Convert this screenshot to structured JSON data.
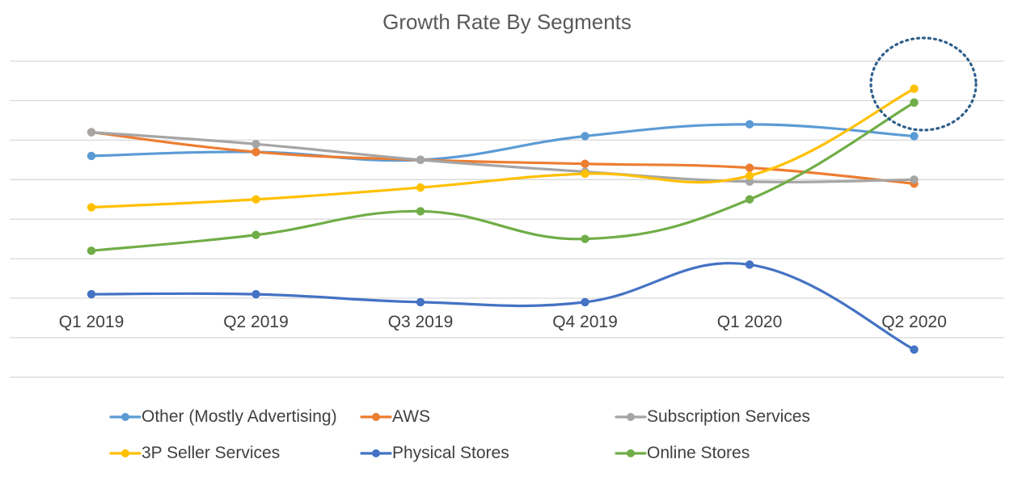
{
  "chart_data": {
    "type": "line",
    "title": "Growth Rate By Segments",
    "categories": [
      "Q1 2019",
      "Q2 2019",
      "Q3 2019",
      "Q4 2019",
      "Q1 2020",
      "Q2 2020"
    ],
    "ylim": [
      -20,
      60
    ],
    "y_gridline_step": 10,
    "y_tick_labels_visible": false,
    "grid": "horizontal",
    "smooth_lines": true,
    "legend_position": "bottom",
    "series": [
      {
        "name": "Other (Mostly Advertising)",
        "color": "#5B9BD5",
        "values": [
          36,
          37,
          35,
          41,
          44,
          41
        ]
      },
      {
        "name": "AWS",
        "color": "#ED7D31",
        "values": [
          42,
          37,
          35,
          34,
          33,
          29
        ]
      },
      {
        "name": "Subscription Services",
        "color": "#A5A5A5",
        "values": [
          42,
          39,
          35,
          32,
          29.5,
          30
        ]
      },
      {
        "name": "3P Seller Services",
        "color": "#FFC000",
        "values": [
          23,
          25,
          28,
          31.5,
          31,
          53
        ]
      },
      {
        "name": "Physical Stores",
        "color": "#4472C4",
        "values": [
          1,
          1,
          -1,
          -1,
          8.5,
          -13
        ]
      },
      {
        "name": "Online Stores",
        "color": "#70AD47",
        "values": [
          12,
          16,
          22,
          15,
          25,
          49.5
        ]
      }
    ],
    "annotations": [
      {
        "type": "dotted-ellipse",
        "color": "#2F5F8A",
        "highlights": "Q2 2020 3P Seller Services and Online Stores"
      }
    ]
  }
}
